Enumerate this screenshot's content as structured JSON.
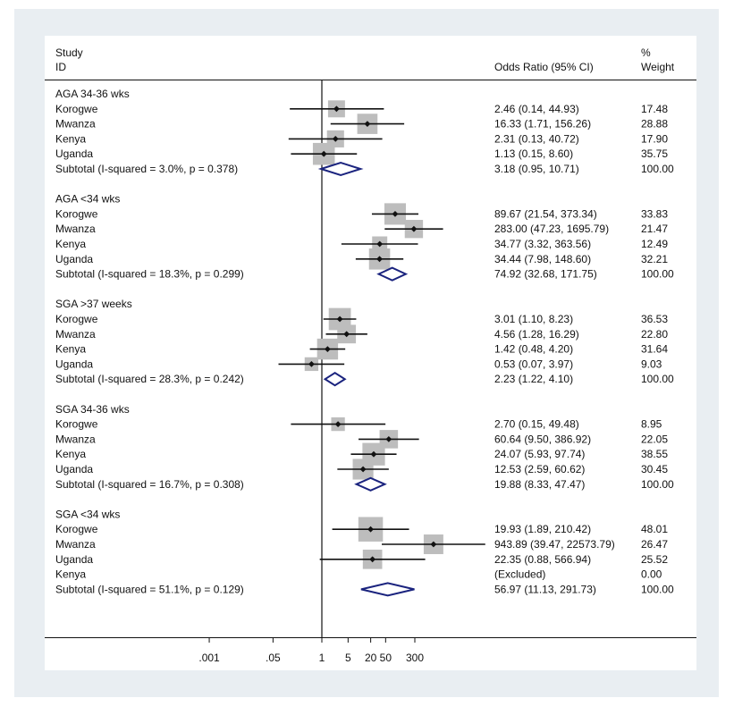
{
  "chart_data": {
    "type": "forest",
    "headers": {
      "study": "Study",
      "id": "ID",
      "or": "Odds Ratio (95% CI)",
      "weight_pct": "%",
      "weight": "Weight"
    },
    "x_scale": "log",
    "x_ticks": [
      {
        "value": 0.001,
        "label": ".001"
      },
      {
        "value": 0.05,
        "label": ".05"
      },
      {
        "value": 1,
        "label": "1"
      },
      {
        "value": 5,
        "label": "5"
      },
      {
        "value": 20,
        "label": "20"
      },
      {
        "value": 50,
        "label": "50"
      },
      {
        "value": 300,
        "label": "300"
      }
    ],
    "groups": [
      {
        "label": "AGA 34-36 wks",
        "studies": [
          {
            "name": "Korogwe",
            "or": 2.46,
            "lo": 0.14,
            "hi": 44.93,
            "text": "2.46 (0.14, 44.93)",
            "weight": "17.48"
          },
          {
            "name": "Mwanza",
            "or": 16.33,
            "lo": 1.71,
            "hi": 156.26,
            "text": "16.33 (1.71, 156.26)",
            "weight": "28.88"
          },
          {
            "name": "Kenya",
            "or": 2.31,
            "lo": 0.13,
            "hi": 40.72,
            "text": "2.31 (0.13, 40.72)",
            "weight": "17.90"
          },
          {
            "name": "Uganda",
            "or": 1.13,
            "lo": 0.15,
            "hi": 8.6,
            "text": "1.13 (0.15, 8.60)",
            "weight": "35.75"
          }
        ],
        "subtotal": {
          "label": "Subtotal  (I-squared = 3.0%, p = 0.378)",
          "or": 3.18,
          "lo": 0.95,
          "hi": 10.71,
          "text": "3.18 (0.95, 10.71)",
          "weight": "100.00"
        }
      },
      {
        "label": "AGA <34 wks",
        "studies": [
          {
            "name": "Korogwe",
            "or": 89.67,
            "lo": 21.54,
            "hi": 373.34,
            "text": "89.67 (21.54, 373.34)",
            "weight": "33.83"
          },
          {
            "name": "Mwanza",
            "or": 283.0,
            "lo": 47.23,
            "hi": 1695.79,
            "text": "283.00 (47.23, 1695.79)",
            "weight": "21.47"
          },
          {
            "name": "Kenya",
            "or": 34.77,
            "lo": 3.32,
            "hi": 363.56,
            "text": "34.77 (3.32, 363.56)",
            "weight": "12.49"
          },
          {
            "name": "Uganda",
            "or": 34.44,
            "lo": 7.98,
            "hi": 148.6,
            "text": "34.44 (7.98, 148.60)",
            "weight": "32.21"
          }
        ],
        "subtotal": {
          "label": "Subtotal  (I-squared = 18.3%, p = 0.299)",
          "or": 74.92,
          "lo": 32.68,
          "hi": 171.75,
          "text": "74.92 (32.68, 171.75)",
          "weight": "100.00"
        }
      },
      {
        "label": "SGA >37 weeks",
        "studies": [
          {
            "name": "Korogwe",
            "or": 3.01,
            "lo": 1.1,
            "hi": 8.23,
            "text": "3.01 (1.10, 8.23)",
            "weight": "36.53"
          },
          {
            "name": "Mwanza",
            "or": 4.56,
            "lo": 1.28,
            "hi": 16.29,
            "text": "4.56 (1.28, 16.29)",
            "weight": "22.80"
          },
          {
            "name": "Kenya",
            "or": 1.42,
            "lo": 0.48,
            "hi": 4.2,
            "text": "1.42 (0.48, 4.20)",
            "weight": "31.64"
          },
          {
            "name": "Uganda",
            "or": 0.53,
            "lo": 0.07,
            "hi": 3.97,
            "text": "0.53 (0.07, 3.97)",
            "weight": "9.03"
          }
        ],
        "subtotal": {
          "label": "Subtotal  (I-squared = 28.3%, p = 0.242)",
          "or": 2.23,
          "lo": 1.22,
          "hi": 4.1,
          "text": "2.23 (1.22, 4.10)",
          "weight": "100.00"
        }
      },
      {
        "label": "SGA 34-36 wks",
        "studies": [
          {
            "name": "Korogwe",
            "or": 2.7,
            "lo": 0.15,
            "hi": 49.48,
            "text": "2.70 (0.15, 49.48)",
            "weight": "8.95"
          },
          {
            "name": "Mwanza",
            "or": 60.64,
            "lo": 9.5,
            "hi": 386.92,
            "text": "60.64 (9.50, 386.92)",
            "weight": "22.05"
          },
          {
            "name": "Kenya",
            "or": 24.07,
            "lo": 5.93,
            "hi": 97.74,
            "text": "24.07 (5.93, 97.74)",
            "weight": "38.55"
          },
          {
            "name": "Uganda",
            "or": 12.53,
            "lo": 2.59,
            "hi": 60.62,
            "text": "12.53 (2.59, 60.62)",
            "weight": "30.45"
          }
        ],
        "subtotal": {
          "label": "Subtotal  (I-squared = 16.7%, p = 0.308)",
          "or": 19.88,
          "lo": 8.33,
          "hi": 47.47,
          "text": "19.88 (8.33, 47.47)",
          "weight": "100.00"
        }
      },
      {
        "label": "SGA <34 wks",
        "studies": [
          {
            "name": "Korogwe",
            "or": 19.93,
            "lo": 1.89,
            "hi": 210.42,
            "text": "19.93 (1.89, 210.42)",
            "weight": "48.01"
          },
          {
            "name": "Mwanza",
            "or": 943.89,
            "lo": 39.47,
            "hi": 22573.79,
            "text": "943.89 (39.47, 22573.79)",
            "weight": "26.47"
          },
          {
            "name": "Uganda",
            "or": 22.35,
            "lo": 0.88,
            "hi": 566.94,
            "text": "22.35 (0.88, 566.94)",
            "weight": "25.52"
          },
          {
            "name": "Kenya",
            "or": null,
            "lo": null,
            "hi": null,
            "text": "(Excluded)",
            "weight": "0.00"
          }
        ],
        "subtotal": {
          "label": "Subtotal  (I-squared = 51.1%, p = 0.129)",
          "or": 56.97,
          "lo": 11.13,
          "hi": 291.73,
          "text": "56.97 (11.13, 291.73)",
          "weight": "100.00"
        }
      }
    ]
  },
  "colors": {
    "outer_background": "#e9eef2",
    "plot_background": "#ffffff",
    "weight_box": "#bdbdbd",
    "point": "#111111",
    "diamond": "#1a237e"
  }
}
